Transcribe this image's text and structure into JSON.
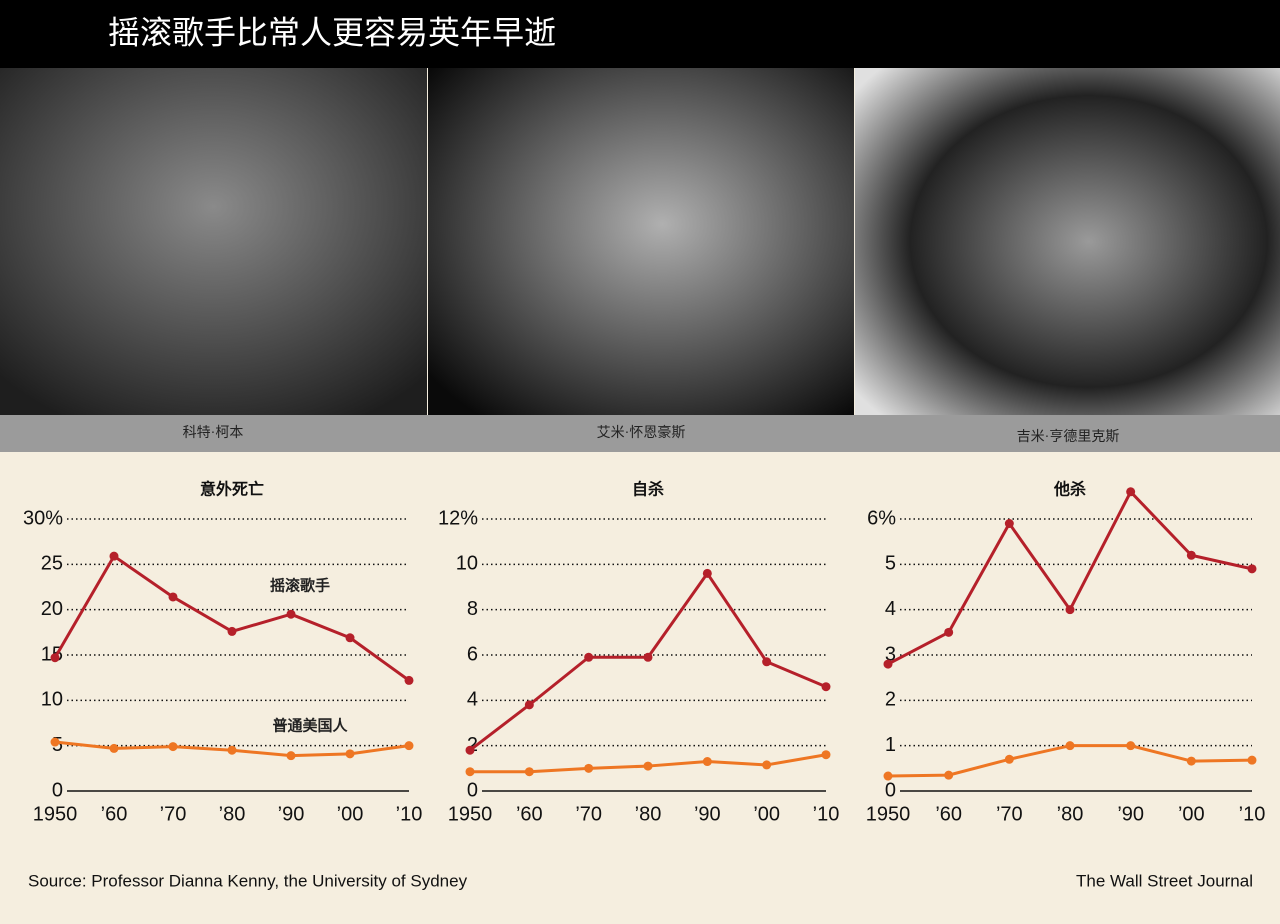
{
  "header": {
    "title": "摇滚歌手比常人更容易英年早逝"
  },
  "photos": [
    {
      "caption": "科特·柯本"
    },
    {
      "caption": "艾米·怀恩豪斯"
    },
    {
      "caption": "吉米·亨德里克斯"
    }
  ],
  "chart_data": [
    {
      "type": "line",
      "title": "意外死亡",
      "categories": [
        "1950",
        "’60",
        "’70",
        "’80",
        "’90",
        "’00",
        "’10"
      ],
      "series": [
        {
          "name": "摇滚歌手",
          "color": "#b5202a",
          "values": [
            14.7,
            25.9,
            21.4,
            17.6,
            19.5,
            16.9,
            12.2
          ]
        },
        {
          "name": "普通美国人",
          "color": "#ee7623",
          "values": [
            5.4,
            4.7,
            4.9,
            4.5,
            3.9,
            4.1,
            5.0
          ]
        }
      ],
      "ylim": [
        0,
        30
      ],
      "yticks": [
        0,
        5,
        10,
        15,
        20,
        25,
        {
          "value": 30,
          "label": "30%"
        }
      ],
      "grid": true
    },
    {
      "type": "line",
      "title": "自杀",
      "categories": [
        "1950",
        "’60",
        "’70",
        "’80",
        "’90",
        "’00",
        "’10"
      ],
      "series": [
        {
          "color": "#b5202a",
          "values": [
            1.8,
            3.8,
            5.9,
            5.9,
            9.6,
            5.7,
            4.6
          ]
        },
        {
          "color": "#ee7623",
          "values": [
            0.85,
            0.85,
            1.0,
            1.1,
            1.3,
            1.15,
            1.6
          ]
        }
      ],
      "ylim": [
        0,
        12
      ],
      "yticks": [
        0,
        2,
        4,
        6,
        8,
        10,
        {
          "value": 12,
          "label": "12%"
        }
      ],
      "grid": true
    },
    {
      "type": "line",
      "title": "他杀",
      "categories": [
        "1950",
        "’60",
        "’70",
        "’80",
        "’90",
        "’00",
        "’10"
      ],
      "series": [
        {
          "color": "#b5202a",
          "values": [
            2.8,
            3.5,
            5.9,
            4.0,
            6.6,
            5.2,
            4.9
          ]
        },
        {
          "color": "#ee7623",
          "values": [
            0.33,
            0.35,
            0.7,
            1.0,
            1.0,
            0.66,
            0.68
          ]
        }
      ],
      "ylim": [
        0,
        6
      ],
      "yticks": [
        0,
        1,
        2,
        3,
        4,
        5,
        {
          "value": 6,
          "label": "6%"
        }
      ],
      "grid": true
    }
  ],
  "footer": {
    "source": "Source: Professor Dianna Kenny, the University of Sydney",
    "credit": "The Wall Street Journal"
  }
}
